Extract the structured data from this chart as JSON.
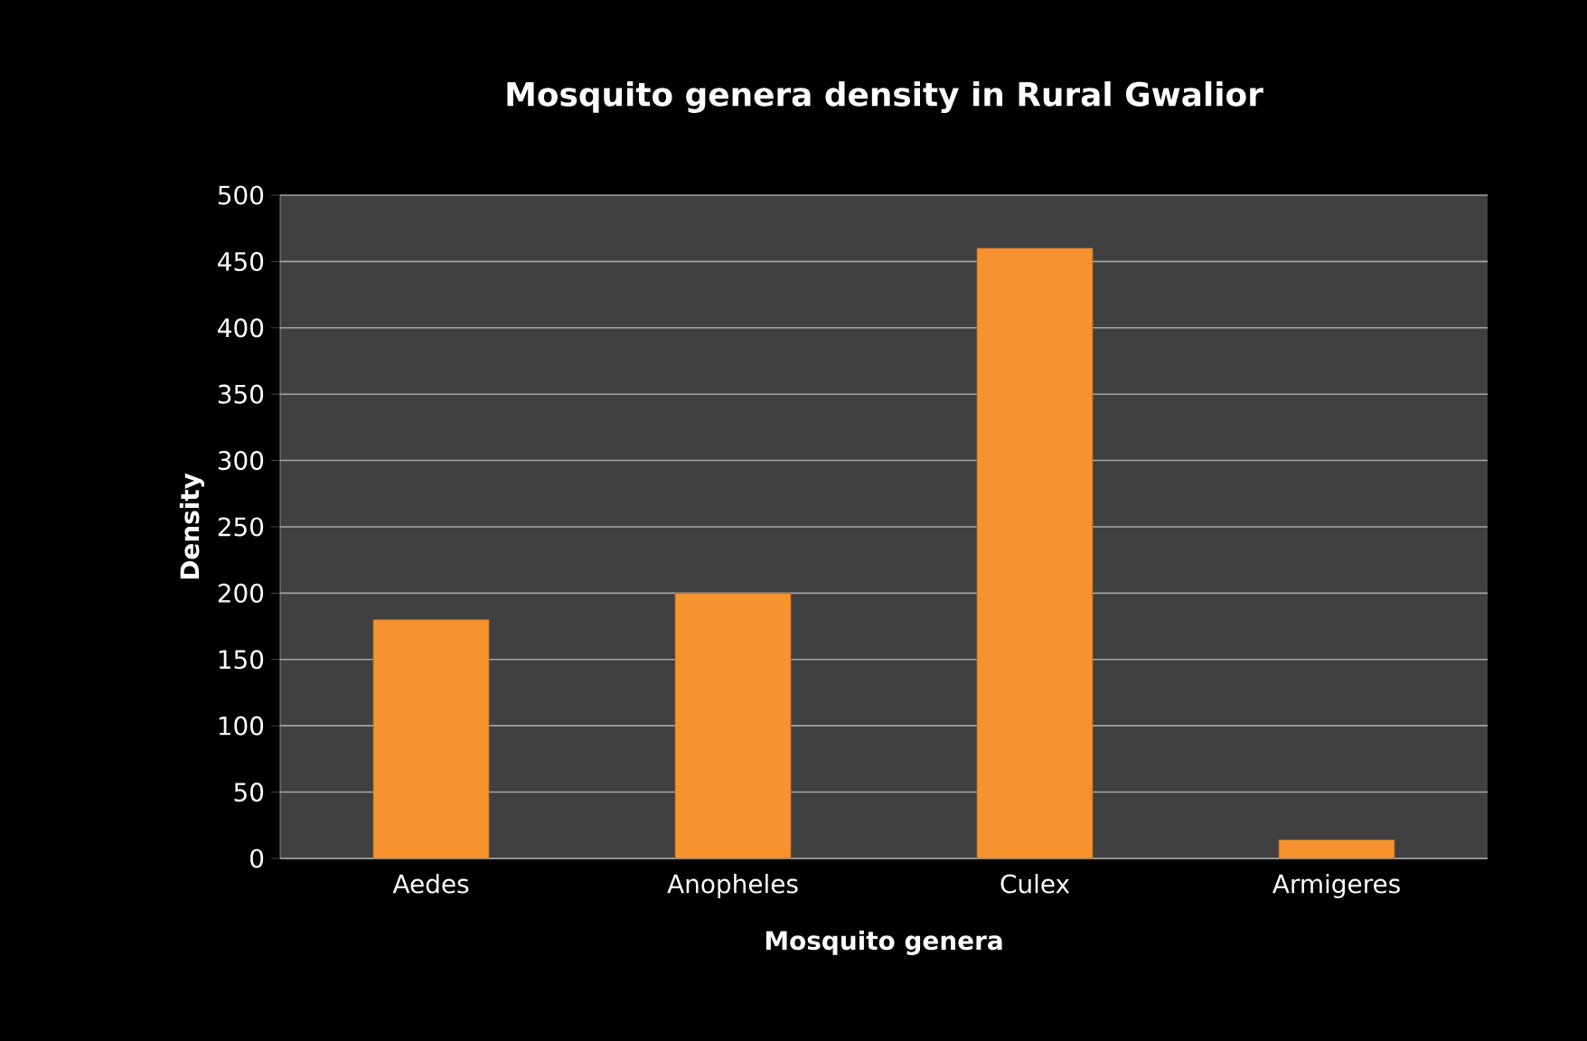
{
  "chart_data": {
    "type": "bar",
    "title": "Mosquito genera density in Rural Gwalior",
    "xlabel": "Mosquito genera",
    "ylabel": "Density",
    "categories": [
      "Aedes",
      "Anopheles",
      "Culex",
      "Armigeres"
    ],
    "values": [
      180,
      200,
      460,
      14
    ],
    "color": "#f7932f",
    "ylim": [
      0,
      500
    ],
    "yticks": [
      0,
      50,
      100,
      150,
      200,
      250,
      300,
      350,
      400,
      450,
      500
    ],
    "grid": "y"
  }
}
